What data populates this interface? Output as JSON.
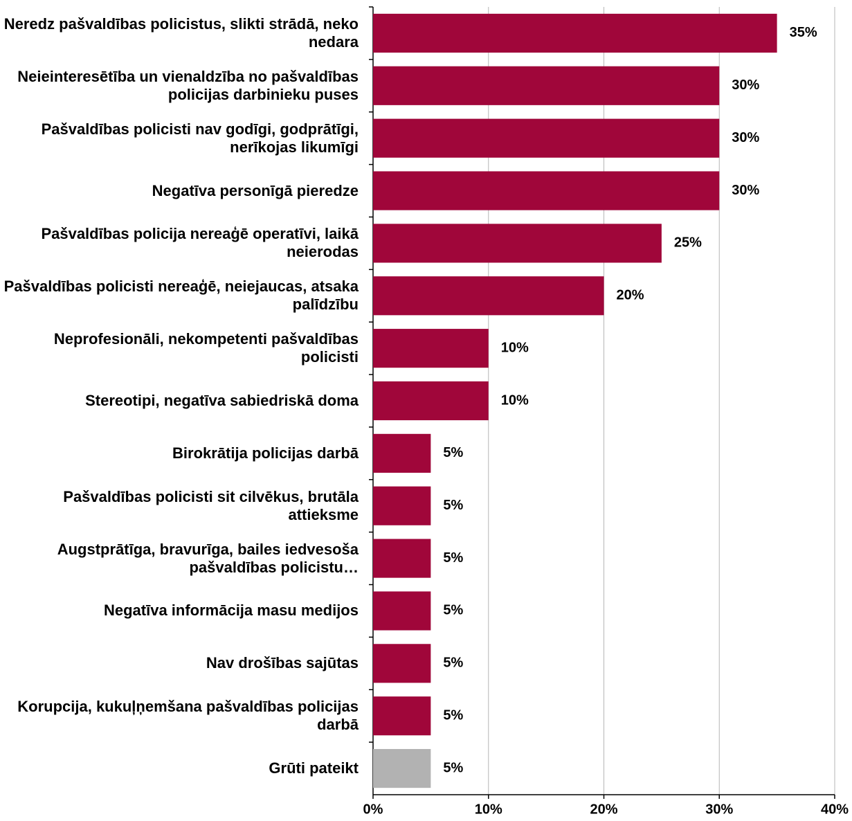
{
  "chart_data": {
    "type": "bar",
    "orientation": "horizontal",
    "categories": [
      "Neredz pašvaldības policistus, slikti strādā, neko nedara",
      "Neieinteresētība un vienaldzība no pašvaldības policijas darbinieku puses",
      "Pašvaldības policisti nav godīgi, godprātīgi, nerīkojas likumīgi",
      "Negatīva personīgā pieredze",
      "Pašvaldības policija nereaģē operatīvi, laikā neierodas",
      "Pašvaldības policisti nereaģē, neiejaucas, atsaka palīdzību",
      "Neprofesionāli, nekompetenti pašvaldības policisti",
      "Stereotipi, negatīva sabiedriskā doma",
      "Birokrātija policijas darbā",
      "Pašvaldības policisti sit cilvēkus, brutāla attieksme",
      "Augstprātīga, bravurīga, bailes iedvesoša pašvaldības policistu…",
      "Negatīva informācija masu medijos",
      "Nav drošības sajūtas",
      "Korupcija, kukuļņemšana pašvaldības policijas darbā",
      "Grūti pateikt"
    ],
    "values": [
      35,
      30,
      30,
      30,
      25,
      20,
      10,
      10,
      5,
      5,
      5,
      5,
      5,
      5,
      5
    ],
    "value_labels": [
      "35%",
      "30%",
      "30%",
      "30%",
      "25%",
      "20%",
      "10%",
      "10%",
      "5%",
      "5%",
      "5%",
      "5%",
      "5%",
      "5%",
      "5%"
    ],
    "colors": [
      "#a0063a",
      "#a0063a",
      "#a0063a",
      "#a0063a",
      "#a0063a",
      "#a0063a",
      "#a0063a",
      "#a0063a",
      "#a0063a",
      "#a0063a",
      "#a0063a",
      "#a0063a",
      "#a0063a",
      "#a0063a",
      "#b2b2b2"
    ],
    "xlim": [
      0,
      40
    ],
    "xticks": [
      {
        "value": 0,
        "label": "0%"
      },
      {
        "value": 10,
        "label": "10%"
      },
      {
        "value": 20,
        "label": "20%"
      },
      {
        "value": 30,
        "label": "30%"
      },
      {
        "value": 40,
        "label": "40%"
      }
    ],
    "grid": true
  }
}
